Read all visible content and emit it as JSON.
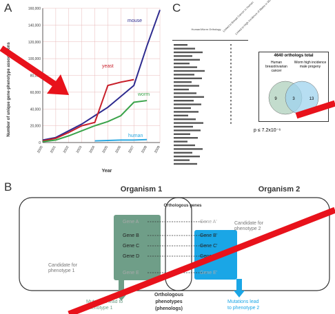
{
  "panels": {
    "a": "A",
    "b": "B",
    "c": "C"
  },
  "chart_data": {
    "type": "line",
    "ylabel": "Number of unique gene-phenotype associations",
    "xlabel": "Year",
    "x": [
      "2000",
      "2001",
      "2002",
      "2003",
      "2004",
      "2005",
      "2006",
      "2007",
      "2008",
      "2009"
    ],
    "ylim": [
      0,
      160000
    ],
    "yticks": [
      "0",
      "20,000",
      "40,000",
      "60,000",
      "80,000",
      "100,000",
      "120,000",
      "140,000",
      "160,000"
    ],
    "grid": true,
    "series": [
      {
        "name": "mouse",
        "color": "#2e2b8f",
        "values": [
          3000,
          6000,
          14000,
          22000,
          32000,
          42000,
          55000,
          68000,
          115000,
          158000
        ]
      },
      {
        "name": "yeast",
        "color": "#c8202b",
        "values": [
          2000,
          5000,
          12000,
          20000,
          24000,
          68000,
          72000,
          75000,
          null,
          null
        ]
      },
      {
        "name": "worm",
        "color": "#3aa34a",
        "values": [
          1000,
          3000,
          8000,
          14000,
          20000,
          25000,
          32000,
          48000,
          50000,
          null
        ]
      },
      {
        "name": "human",
        "color": "#2aa7e0",
        "values": [
          null,
          null,
          null,
          null,
          2000,
          2500,
          3000,
          3000,
          3500,
          null
        ]
      }
    ]
  },
  "panel_c": {
    "col_header": "Human/Worm Orthology",
    "rot_headers": [
      "Linked to Breast Cancer in Human",
      "Linked to High Incidence of Males in Worm"
    ],
    "venn": {
      "title": "4640 orthologs total",
      "left_label": "Human breast/ovarian cancer",
      "right_label": "Worm high incidence male progeny",
      "left_count": "9",
      "overlap_count": "3",
      "right_count": "13",
      "pvalue": "p ≤ 7.2x10⁻⁶"
    }
  },
  "panel_b": {
    "org1": "Organism 1",
    "org2": "Organism 2",
    "orthologous_genes": "Orthologous genes",
    "genes_left": [
      "Gene A",
      "Gene B",
      "Gene C",
      "Gene D",
      "Gene E"
    ],
    "genes_right": [
      "Gene A'",
      "Gene B'",
      "Gene C'",
      "Gene D'",
      "Gene E'"
    ],
    "cand2": "Candidate for phenotype 2",
    "cand1": "Candidate for phenotype 1",
    "mut1": "Mutations lead to phenotype 1",
    "mut2": "Mutations lead to phenotype 2",
    "orth_pheno": "Orthologous phenotypes (phenologs)"
  },
  "colors": {
    "annotation_red": "#e8121b",
    "green_box": "#6f9e88",
    "blue_box": "#1aa6e6"
  }
}
